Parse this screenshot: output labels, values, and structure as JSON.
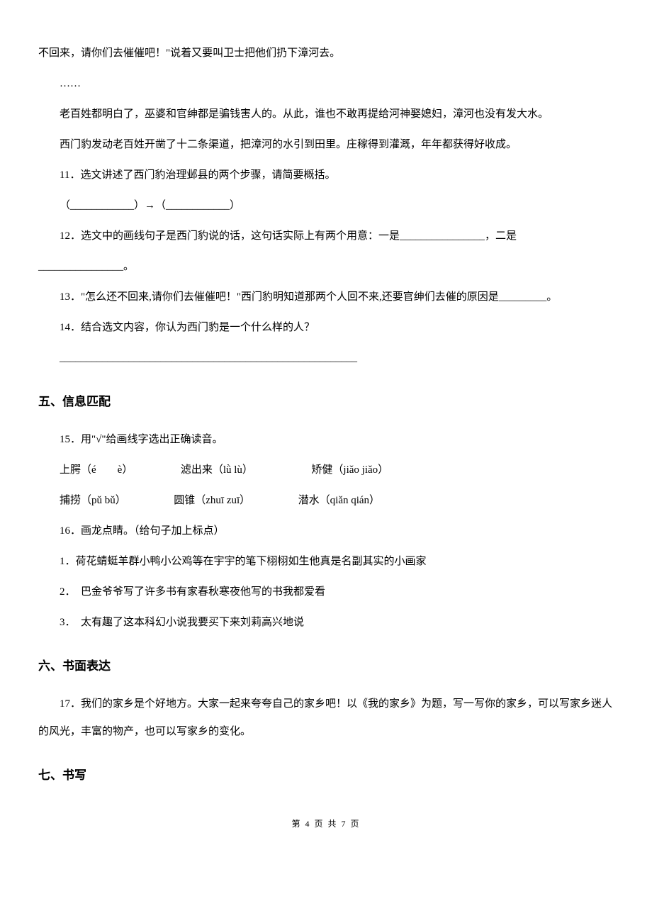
{
  "body_font_size": 15,
  "heading_font_size": 17,
  "line_height": 2.6,
  "text_color": "#000000",
  "background_color": "#ffffff",
  "para_intro": "不回来，请你们去催催吧！\"说着又要叫卫士把他们扔下漳河去。",
  "ellipsis": "……",
  "para1": "老百姓都明白了，巫婆和官绅都是骗钱害人的。从此，谁也不敢再提给河神娶媳妇，漳河也没有发大水。",
  "para2": "西门豹发动老百姓开凿了十二条渠道，把漳河的水引到田里。庄稼得到灌溉，年年都获得好收成。",
  "q11": "11．选文讲述了西门豹治理邺县的两个步骤，请简要概括。",
  "q11_answer_line": "（____________）→（____________）",
  "q12_part1": "12．选文中的画线句子是西门豹说的话，这句话实际上有两个用意：一是________________，二是",
  "q12_part2": "________________。",
  "q13": "13．\"怎么还不回来,请你们去催催吧！\"西门豹明知道那两个人回不来,还要官绅们去催的原因是_________。",
  "q14": "14．结合选文内容，你认为西门豹是一个什么样的人？",
  "q14_blank": "________________________________________________________",
  "heading5": "五、信息匹配",
  "q15": "15．用\"√\"给画线字选出正确读音。",
  "phonetic_row1": "上腭（é　　è）　　　　　滤出来（lǜ lù）　　　　　　矫健（jiǎo jiǎo）",
  "phonetic_row2": "捕捞（pǔ bǔ）　　　　　圆锥（zhuī zuī）　　　　　潜水（qiǎn qián）",
  "q16": "16．画龙点睛。（给句子加上标点）",
  "q16_1": "1．荷花蜻蜓羊群小鸭小公鸡等在宇宇的笔下栩栩如生他真是名副其实的小画家",
  "q16_2": "2．　巴金爷爷写了许多书有家春秋寒夜他写的书我都爱看",
  "q16_3": "3．　太有趣了这本科幻小说我要买下来刘莉高兴地说",
  "heading6": "六、书面表达",
  "q17": "17．我们的家乡是个好地方。大家一起来夸夸自己的家乡吧！以《我的家乡》为题，写一写你的家乡，可以写家乡迷人的风光，丰富的物产，也可以写家乡的变化。",
  "heading7": "七、书写",
  "footer": "第 4 页 共 7 页"
}
